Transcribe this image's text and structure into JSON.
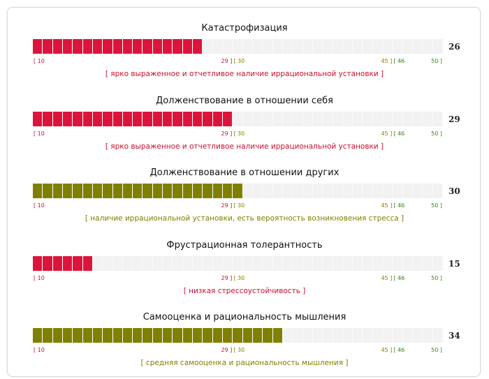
{
  "scale": {
    "min": 10,
    "max": 50,
    "ticks": [
      {
        "text": "[ 10",
        "value": 10,
        "align": "left",
        "color": "#c8102e"
      },
      {
        "text": "29 ]",
        "value": 29,
        "align": "right",
        "color": "#c8102e"
      },
      {
        "text": "[ 30",
        "value": 30,
        "align": "left",
        "color": "#808000"
      },
      {
        "text": "45 ]",
        "value": 45,
        "align": "right",
        "color": "#808000"
      },
      {
        "text": "[ 46",
        "value": 46,
        "align": "left",
        "color": "#3a7d1c"
      },
      {
        "text": "50 ]",
        "value": 50,
        "align": "right",
        "color": "#3a7d1c"
      }
    ]
  },
  "chart_data": [
    {
      "type": "bar",
      "title": "Катастрофизация",
      "value": 26,
      "xlim": [
        10,
        50
      ],
      "color": "#dc143c",
      "description": "[ ярко выраженное и отчетливое наличие иррациональной установки ]",
      "description_color": "#c8102e"
    },
    {
      "type": "bar",
      "title": "Долженствование в отношении себя",
      "value": 29,
      "xlim": [
        10,
        50
      ],
      "color": "#dc143c",
      "description": "[ ярко выраженное и отчетливое наличие иррациональной установки ]",
      "description_color": "#c8102e"
    },
    {
      "type": "bar",
      "title": "Долженствование в отношении других",
      "value": 30,
      "xlim": [
        10,
        50
      ],
      "color": "#808000",
      "description": "[ наличие иррациональной установки, есть вероятность возникновения стресса ]",
      "description_color": "#808000"
    },
    {
      "type": "bar",
      "title": "Фрустрационная толерантность",
      "value": 15,
      "xlim": [
        10,
        50
      ],
      "color": "#dc143c",
      "description": "[ низкая стрессоустойчивость ]",
      "description_color": "#c8102e"
    },
    {
      "type": "bar",
      "title": "Самооценка и рациональность мышления",
      "value": 34,
      "xlim": [
        10,
        50
      ],
      "color": "#808000",
      "description": "[ средняя самооценка и рациональность мышления ]",
      "description_color": "#808000"
    }
  ]
}
